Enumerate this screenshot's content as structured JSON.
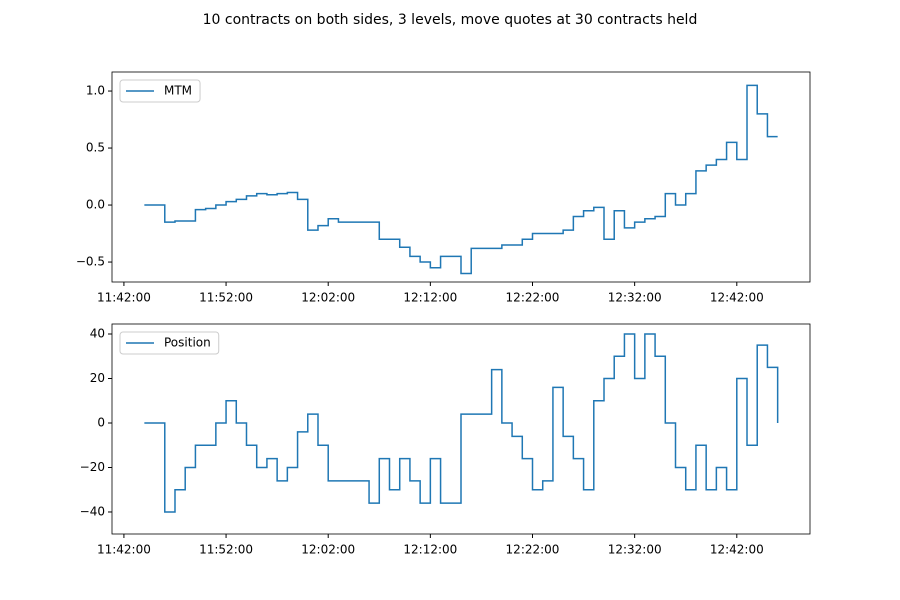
{
  "title": "10 contracts on both sides, 3 levels, move quotes at 30 contracts held",
  "chart_data": [
    {
      "type": "line",
      "drawstyle": "steps-post",
      "legend": "upper left",
      "x": [
        "11:44:00",
        "11:45:00",
        "11:46:00",
        "11:47:00",
        "11:48:00",
        "11:49:00",
        "11:50:00",
        "11:51:00",
        "11:52:00",
        "11:53:00",
        "11:54:00",
        "11:55:00",
        "11:56:00",
        "11:57:00",
        "11:58:00",
        "11:59:00",
        "12:00:00",
        "12:01:00",
        "12:02:00",
        "12:03:00",
        "12:04:00",
        "12:05:00",
        "12:06:00",
        "12:07:00",
        "12:08:00",
        "12:09:00",
        "12:10:00",
        "12:11:00",
        "12:12:00",
        "12:13:00",
        "12:14:00",
        "12:15:00",
        "12:16:00",
        "12:17:00",
        "12:18:00",
        "12:19:00",
        "12:20:00",
        "12:21:00",
        "12:22:00",
        "12:23:00",
        "12:24:00",
        "12:25:00",
        "12:26:00",
        "12:27:00",
        "12:28:00",
        "12:29:00",
        "12:30:00",
        "12:31:00",
        "12:32:00",
        "12:33:00",
        "12:34:00",
        "12:35:00",
        "12:36:00",
        "12:37:00",
        "12:38:00",
        "12:39:00",
        "12:40:00",
        "12:41:00",
        "12:42:00",
        "12:43:00",
        "12:44:00",
        "12:45:00",
        "12:46:00"
      ],
      "series": [
        {
          "name": "MTM",
          "color": "#1f77b4",
          "values": [
            0,
            0,
            -0.15,
            -0.14,
            -0.14,
            -0.04,
            -0.03,
            0,
            0.03,
            0.05,
            0.08,
            0.1,
            0.09,
            0.1,
            0.11,
            0.05,
            -0.22,
            -0.18,
            -0.12,
            -0.15,
            -0.15,
            -0.15,
            -0.15,
            -0.3,
            -0.3,
            -0.37,
            -0.45,
            -0.5,
            -0.55,
            -0.45,
            -0.45,
            -0.6,
            -0.38,
            -0.38,
            -0.38,
            -0.35,
            -0.35,
            -0.3,
            -0.25,
            -0.25,
            -0.25,
            -0.22,
            -0.1,
            -0.05,
            -0.02,
            -0.3,
            -0.05,
            -0.2,
            -0.15,
            -0.12,
            -0.1,
            0.1,
            0,
            0.1,
            0.3,
            0.35,
            0.4,
            0.55,
            0.4,
            1.05,
            0.8,
            0.6,
            0.6
          ]
        }
      ],
      "xlim": [
        "11:40:50",
        "12:49:10"
      ],
      "xticks": [
        "11:42:00",
        "11:52:00",
        "12:02:00",
        "12:12:00",
        "12:22:00",
        "12:32:00",
        "12:42:00"
      ],
      "ylim": [
        -0.675,
        1.167
      ],
      "yticks": [
        {
          "value": -0.5,
          "label": "−0.5"
        },
        {
          "value": 0,
          "label": "0.0"
        },
        0.5,
        {
          "value": 1,
          "label": "1.0"
        }
      ]
    },
    {
      "type": "line",
      "drawstyle": "steps-post",
      "legend": "upper left",
      "x": [
        "11:44:00",
        "11:45:00",
        "11:46:00",
        "11:47:00",
        "11:48:00",
        "11:49:00",
        "11:50:00",
        "11:51:00",
        "11:52:00",
        "11:53:00",
        "11:54:00",
        "11:55:00",
        "11:56:00",
        "11:57:00",
        "11:58:00",
        "11:59:00",
        "12:00:00",
        "12:01:00",
        "12:02:00",
        "12:03:00",
        "12:04:00",
        "12:05:00",
        "12:06:00",
        "12:07:00",
        "12:08:00",
        "12:09:00",
        "12:10:00",
        "12:11:00",
        "12:12:00",
        "12:13:00",
        "12:14:00",
        "12:15:00",
        "12:16:00",
        "12:17:00",
        "12:18:00",
        "12:19:00",
        "12:20:00",
        "12:21:00",
        "12:22:00",
        "12:23:00",
        "12:24:00",
        "12:25:00",
        "12:26:00",
        "12:27:00",
        "12:28:00",
        "12:29:00",
        "12:30:00",
        "12:31:00",
        "12:32:00",
        "12:33:00",
        "12:34:00",
        "12:35:00",
        "12:36:00",
        "12:37:00",
        "12:38:00",
        "12:39:00",
        "12:40:00",
        "12:41:00",
        "12:42:00",
        "12:43:00",
        "12:44:00",
        "12:45:00",
        "12:46:00"
      ],
      "series": [
        {
          "name": "Position",
          "color": "#1f77b4",
          "values": [
            0,
            0,
            -40,
            -30,
            -20,
            -10,
            -10,
            0,
            10,
            0,
            -10,
            -20,
            -16,
            -26,
            -20,
            -4,
            4,
            -10,
            -26,
            -26,
            -26,
            -26,
            -36,
            -16,
            -30,
            -16,
            -26,
            -36,
            -16,
            -36,
            -36,
            4,
            4,
            4,
            24,
            0,
            -6,
            -16,
            -30,
            -26,
            16,
            -6,
            -16,
            -30,
            10,
            20,
            30,
            40,
            20,
            40,
            30,
            0,
            -20,
            -30,
            -10,
            -30,
            -20,
            -30,
            20,
            -10,
            35,
            25,
            0
          ]
        }
      ],
      "xlim": [
        "11:40:50",
        "12:49:10"
      ],
      "xticks": [
        "11:42:00",
        "11:52:00",
        "12:02:00",
        "12:12:00",
        "12:22:00",
        "12:32:00",
        "12:42:00"
      ],
      "ylim": [
        -49.9,
        44.5
      ],
      "yticks": [
        {
          "value": -40,
          "label": "−40"
        },
        {
          "value": -20,
          "label": "−20"
        },
        0,
        20,
        40
      ]
    }
  ]
}
